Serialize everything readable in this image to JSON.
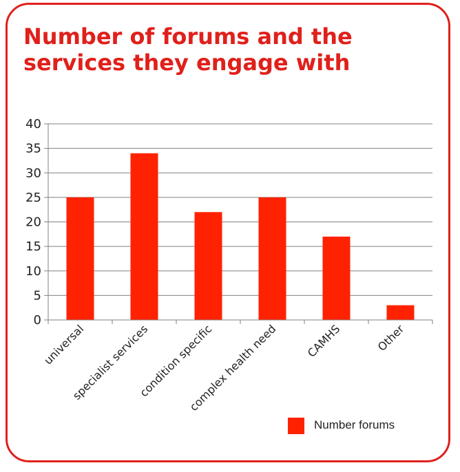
{
  "chart_data": {
    "type": "bar",
    "title": "Number of forums and the services they engage with",
    "categories": [
      "universal",
      "specialist services",
      "condition specific",
      "complex health need",
      "CAMHS",
      "Other"
    ],
    "series": [
      {
        "name": "Number forums",
        "values": [
          25,
          34,
          22,
          25,
          17,
          3
        ]
      }
    ],
    "xlabel": "",
    "ylabel": "",
    "ylim": [
      0,
      40
    ],
    "yticks": [
      "0",
      "5",
      "10",
      "15",
      "20",
      "25",
      "30",
      "35",
      "40"
    ],
    "grid": true,
    "legend_position": "bottom-right",
    "bar_color": "#ff2200",
    "accent_color": "#e0201b"
  }
}
